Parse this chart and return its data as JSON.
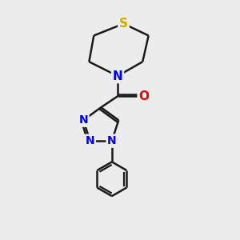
{
  "background_color": "#ececec",
  "bond_color": "#1a1a1a",
  "bond_width": 1.8,
  "atom_colors": {
    "N": "#0000ee",
    "O": "#ee0000",
    "S": "#ccaa00"
  },
  "font_size": 11,
  "figsize": [
    3.0,
    3.0
  ],
  "dpi": 100
}
